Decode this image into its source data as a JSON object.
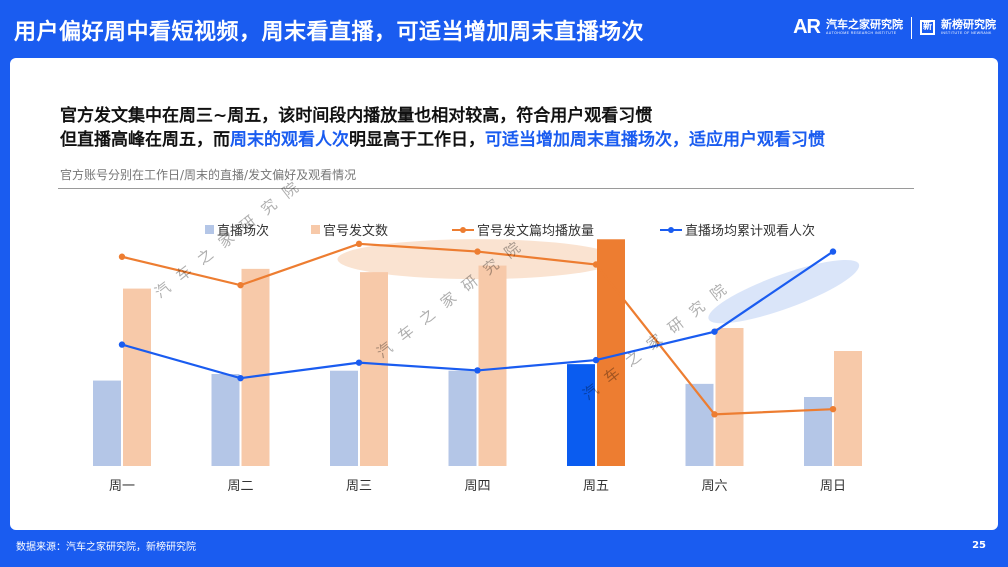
{
  "header": {
    "title": "用户偏好周中看短视频，周末看直播，可适当增加周末直播场次",
    "logo_mark": "AR",
    "logo_name": "汽车之家研究院",
    "logo_sub": "AUTOHOME RESEARCH INSTITUTE",
    "logo2_name": "新榜研究院",
    "logo2_sub": "INSTITUTE OF NEWRANK"
  },
  "headline": {
    "line1": "官方发文集中在周三~周五，该时间段内播放量也相对较高，符合用户观看习惯",
    "line2_a": "但直播高峰在周五，而",
    "line2_b": "周末的观看人次",
    "line2_c": "明显高于工作日，",
    "line2_d": "可适当增加周末直播场次，适应用户观看习惯"
  },
  "subtitle": "官方账号分别在工作日/周末的直播/发文偏好及观看情况",
  "watermark": "汽车之家研究院",
  "colors": {
    "header_bg": "#1a5cf0",
    "bar_live": "#b4c6e7",
    "bar_live_highlight": "#0a5cf0",
    "bar_post": "#f7c9a9",
    "bar_post_highlight": "#ed7d31",
    "line_views": "#ed7d31",
    "line_live_views": "#1a5cf0",
    "ellipse_orange": "#f9dcc6",
    "ellipse_blue": "#d6e2f8"
  },
  "chart_data": {
    "type": "bar+line",
    "categories": [
      "周一",
      "周二",
      "周三",
      "周四",
      "周五",
      "周六",
      "周日"
    ],
    "highlight_category": "周五",
    "legend": [
      "直播场次",
      "官号发文数",
      "官号发文篇均播放量",
      "直播场均累计观看人次"
    ],
    "series": [
      {
        "name": "直播场次",
        "type": "bar",
        "axis": "left",
        "values": [
          26,
          28,
          29,
          29,
          31,
          25,
          21
        ]
      },
      {
        "name": "官号发文数",
        "type": "bar",
        "axis": "left",
        "values": [
          54,
          60,
          59,
          61,
          69,
          42,
          35
        ]
      },
      {
        "name": "官号发文篇均播放量",
        "type": "line",
        "axis": "right",
        "values": [
          81,
          70,
          86,
          83,
          78,
          20,
          22
        ]
      },
      {
        "name": "直播场均累计观看人次",
        "type": "line",
        "axis": "right",
        "values": [
          47,
          34,
          40,
          37,
          41,
          52,
          83
        ]
      }
    ],
    "ylim_left": [
      0,
      70
    ],
    "ylim_right": [
      0,
      120
    ],
    "grid": false,
    "legend_position": "top"
  },
  "footer": {
    "source": "数据来源：汽车之家研究院，新榜研究院",
    "page_number": "25"
  }
}
